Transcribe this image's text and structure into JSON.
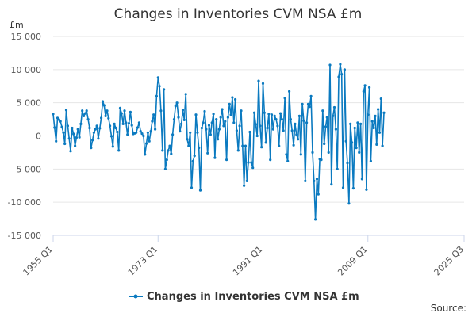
{
  "chart_data": {
    "type": "line",
    "title": "Changes in Inventories CVM NSA £m",
    "unit_label": "£m",
    "source_label": "Source:",
    "y_ticks": [
      15000,
      10000,
      5000,
      0,
      -5000,
      -10000,
      -15000
    ],
    "y_tick_labels": [
      "15 000",
      "10 000",
      "5 000",
      "0",
      "-5 000",
      "-10 000",
      "-15 000"
    ],
    "ylim": [
      -15000,
      15000
    ],
    "x_ticks": [
      {
        "label": "1955 Q1",
        "index": 0
      },
      {
        "label": "1973 Q1",
        "index": 72
      },
      {
        "label": "1991 Q1",
        "index": 144
      },
      {
        "label": "2009 Q1",
        "index": 216
      },
      {
        "label": "2025 Q3",
        "index": 282
      }
    ],
    "series": [
      {
        "name": "Changes in Inventories CVM NSA £m",
        "color": "#0b7ac0",
        "start_label": "1955 Q1",
        "end_label": "2025 Q3",
        "anchors": [
          [
            0,
            3300
          ],
          [
            2,
            -800
          ],
          [
            3,
            2700
          ],
          [
            5,
            2200
          ],
          [
            7,
            500
          ],
          [
            8,
            -1200
          ],
          [
            9,
            3900
          ],
          [
            10,
            1500
          ],
          [
            12,
            -2300
          ],
          [
            13,
            1200
          ],
          [
            14,
            300
          ],
          [
            15,
            -1500
          ],
          [
            17,
            1000
          ],
          [
            18,
            -200
          ],
          [
            20,
            3800
          ],
          [
            21,
            3000
          ],
          [
            23,
            3800
          ],
          [
            25,
            1200
          ],
          [
            26,
            -1800
          ],
          [
            28,
            500
          ],
          [
            30,
            1500
          ],
          [
            31,
            -400
          ],
          [
            33,
            2700
          ],
          [
            34,
            5200
          ],
          [
            35,
            4600
          ],
          [
            36,
            3000
          ],
          [
            37,
            3800
          ],
          [
            39,
            1500
          ],
          [
            41,
            -1600
          ],
          [
            42,
            1800
          ],
          [
            44,
            600
          ],
          [
            45,
            -2200
          ],
          [
            46,
            4200
          ],
          [
            47,
            3400
          ],
          [
            48,
            1800
          ],
          [
            49,
            3800
          ],
          [
            51,
            200
          ],
          [
            53,
            3600
          ],
          [
            54,
            1600
          ],
          [
            55,
            300
          ],
          [
            57,
            500
          ],
          [
            59,
            2000
          ],
          [
            60,
            700
          ],
          [
            62,
            0
          ],
          [
            63,
            -2800
          ],
          [
            65,
            500
          ],
          [
            66,
            -800
          ],
          [
            68,
            2200
          ],
          [
            69,
            3200
          ],
          [
            70,
            1000
          ],
          [
            71,
            6000
          ],
          [
            72,
            8800
          ],
          [
            73,
            7500
          ],
          [
            74,
            3800
          ],
          [
            75,
            -2200
          ],
          [
            76,
            7000
          ],
          [
            77,
            -5000
          ],
          [
            79,
            -2200
          ],
          [
            80,
            -1500
          ],
          [
            81,
            -2700
          ],
          [
            82,
            200
          ],
          [
            83,
            2500
          ],
          [
            84,
            4500
          ],
          [
            85,
            5000
          ],
          [
            86,
            2800
          ],
          [
            87,
            700
          ],
          [
            88,
            1800
          ],
          [
            89,
            3900
          ],
          [
            90,
            2400
          ],
          [
            91,
            6300
          ],
          [
            92,
            -500
          ],
          [
            93,
            -1500
          ],
          [
            94,
            500
          ],
          [
            95,
            -7800
          ],
          [
            96,
            -3800
          ],
          [
            97,
            -3000
          ],
          [
            98,
            3200
          ],
          [
            99,
            500
          ],
          [
            100,
            -1800
          ],
          [
            101,
            -8200
          ],
          [
            102,
            1200
          ],
          [
            103,
            2000
          ],
          [
            104,
            3700
          ],
          [
            105,
            1000
          ],
          [
            106,
            -2600
          ],
          [
            107,
            1600
          ],
          [
            108,
            200
          ],
          [
            109,
            2000
          ],
          [
            110,
            3300
          ],
          [
            111,
            -3300
          ],
          [
            112,
            2500
          ],
          [
            113,
            -500
          ],
          [
            114,
            1000
          ],
          [
            115,
            2800
          ],
          [
            116,
            4000
          ],
          [
            117,
            1500
          ],
          [
            118,
            2200
          ],
          [
            119,
            -3600
          ],
          [
            120,
            2800
          ],
          [
            121,
            4800
          ],
          [
            122,
            3200
          ],
          [
            123,
            5800
          ],
          [
            124,
            2000
          ],
          [
            125,
            5500
          ],
          [
            126,
            800
          ],
          [
            127,
            -2200
          ],
          [
            128,
            1500
          ],
          [
            129,
            3800
          ],
          [
            130,
            -1500
          ],
          [
            131,
            -7500
          ],
          [
            132,
            -1500
          ],
          [
            133,
            -6800
          ],
          [
            134,
            -4000
          ],
          [
            135,
            600
          ],
          [
            136,
            -4000
          ],
          [
            137,
            -4800
          ],
          [
            138,
            3500
          ],
          [
            140,
            0
          ],
          [
            141,
            8300
          ],
          [
            142,
            1500
          ],
          [
            143,
            -1700
          ],
          [
            144,
            7900
          ],
          [
            145,
            3500
          ],
          [
            146,
            -1000
          ],
          [
            147,
            1200
          ],
          [
            148,
            3300
          ],
          [
            149,
            -3600
          ],
          [
            150,
            3200
          ],
          [
            151,
            1000
          ],
          [
            152,
            3000
          ],
          [
            153,
            2500
          ],
          [
            154,
            1500
          ],
          [
            155,
            -1500
          ],
          [
            156,
            3400
          ],
          [
            157,
            2500
          ],
          [
            158,
            800
          ],
          [
            159,
            5700
          ],
          [
            160,
            -2800
          ],
          [
            161,
            -3800
          ],
          [
            162,
            6700
          ],
          [
            163,
            2500
          ],
          [
            164,
            800
          ],
          [
            165,
            -1400
          ],
          [
            166,
            1800
          ],
          [
            167,
            200
          ],
          [
            168,
            -500
          ],
          [
            169,
            3000
          ],
          [
            170,
            -2800
          ],
          [
            171,
            4800
          ],
          [
            172,
            2300
          ],
          [
            173,
            -6800
          ],
          [
            174,
            2000
          ],
          [
            175,
            4800
          ],
          [
            176,
            4400
          ],
          [
            177,
            6000
          ],
          [
            178,
            -2500
          ],
          [
            179,
            -6800
          ],
          [
            180,
            -12600
          ],
          [
            181,
            -6500
          ],
          [
            182,
            -8800
          ],
          [
            183,
            -3500
          ],
          [
            184,
            -3600
          ],
          [
            185,
            3800
          ],
          [
            186,
            -1200
          ],
          [
            187,
            1400
          ],
          [
            188,
            2800
          ],
          [
            189,
            -2500
          ],
          [
            190,
            10700
          ],
          [
            191,
            -7300
          ],
          [
            192,
            3000
          ],
          [
            193,
            4300
          ],
          [
            194,
            1000
          ],
          [
            195,
            -5000
          ],
          [
            196,
            8900
          ],
          [
            197,
            10800
          ],
          [
            198,
            9300
          ],
          [
            199,
            -7800
          ],
          [
            200,
            10000
          ],
          [
            201,
            -800
          ],
          [
            202,
            -4100
          ],
          [
            203,
            -10200
          ],
          [
            204,
            1800
          ],
          [
            205,
            -1000
          ],
          [
            206,
            -7900
          ],
          [
            207,
            1200
          ],
          [
            208,
            -1800
          ],
          [
            209,
            2000
          ],
          [
            210,
            -2500
          ],
          [
            211,
            1800
          ],
          [
            212,
            -6500
          ],
          [
            213,
            6700
          ],
          [
            214,
            7600
          ],
          [
            215,
            -8100
          ],
          [
            216,
            3200
          ],
          [
            217,
            7300
          ],
          [
            218,
            -3800
          ],
          [
            219,
            2200
          ],
          [
            220,
            1200
          ],
          [
            221,
            3000
          ],
          [
            222,
            -1300
          ],
          [
            223,
            4000
          ],
          [
            224,
            500
          ],
          [
            225,
            5600
          ],
          [
            226,
            -1500
          ],
          [
            227,
            3500
          ]
        ]
      }
    ],
    "legend": {
      "label": "Changes in Inventories CVM NSA £m",
      "position": "bottom-center"
    }
  }
}
